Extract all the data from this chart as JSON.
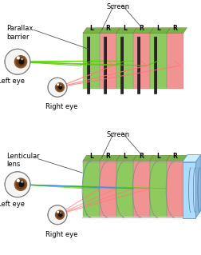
{
  "bg_color": "#ffffff",
  "top": {
    "screen_label": "Screen",
    "barrier_label": "Parallax\nbarrier",
    "left_eye_label": "Left eye",
    "right_eye_label": "Right eye",
    "panel_colors": [
      "#7bc143",
      "#f08080",
      "#7bc143",
      "#f08080",
      "#7bc143",
      "#f08080"
    ],
    "barrier_color": "#2a2a2a",
    "barrier_side_color": "#5a4030",
    "top_face_color": "#6aaa33",
    "lr_labels": [
      "L",
      "R",
      "L",
      "R",
      "L",
      "R"
    ]
  },
  "bottom": {
    "screen_label": "Screen",
    "lens_label": "Lenticular\nlens",
    "left_eye_label": "Left eye",
    "right_eye_label": "Right eye",
    "panel_colors": [
      "#7bc143",
      "#f08080",
      "#7bc143",
      "#f08080",
      "#7bc143",
      "#f08080"
    ],
    "lens_color": "#888888",
    "blue_box_color": "#aaddff",
    "blue_box_top": "#cceeff",
    "blue_box_side": "#88bbdd",
    "top_face_color": "#6aaa33",
    "lr_labels": [
      "L",
      "R",
      "L",
      "R",
      "L",
      "R"
    ]
  },
  "green_ray": "#55cc00",
  "red_ray": "#ff7777",
  "blue_ray": "#4488ff",
  "eye_white": "#f0f0f0",
  "eye_iris": "#8B4513",
  "label_fontsize": 6.0,
  "lr_fontsize": 5.5
}
